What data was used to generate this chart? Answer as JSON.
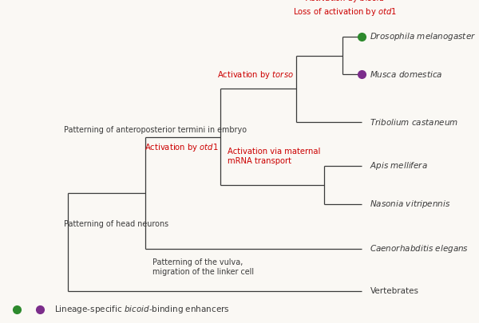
{
  "bg_color": "#faf8f4",
  "line_color": "#3a3a3a",
  "red_color": "#cc0000",
  "green_color": "#2d8a2d",
  "purple_color": "#7b2d8b",
  "figsize": [
    6.0,
    4.05
  ],
  "dpi": 100,
  "species": [
    {
      "name": "Drosophila melanogaster",
      "marker": "green"
    },
    {
      "name": "Musca domestica",
      "marker": "purple"
    },
    {
      "name": "Tribolium castaneum",
      "marker": null
    },
    {
      "name": "Apis mellifera",
      "marker": null
    },
    {
      "name": "Nasonia vitripennis",
      "marker": null
    },
    {
      "name": "Caenorhabditis elegans",
      "marker": null
    },
    {
      "name": "Vertebrates",
      "marker": null
    }
  ],
  "lw": 0.9,
  "species_fontsize": 7.5,
  "annot_fontsize": 7.2,
  "legend_fontsize": 7.5
}
